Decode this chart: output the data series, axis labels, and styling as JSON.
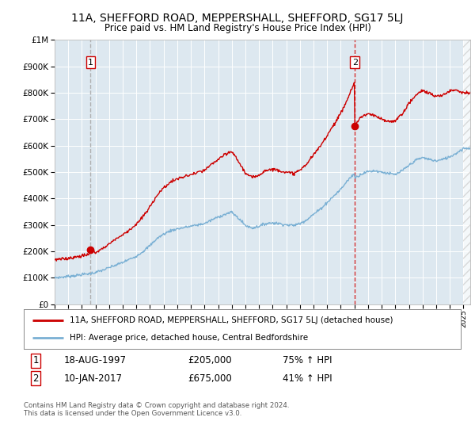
{
  "title": "11A, SHEFFORD ROAD, MEPPERSHALL, SHEFFORD, SG17 5LJ",
  "subtitle": "Price paid vs. HM Land Registry's House Price Index (HPI)",
  "sale1_date": 1997.63,
  "sale1_price": 205000,
  "sale2_date": 2017.03,
  "sale2_price": 675000,
  "legend_line1": "11A, SHEFFORD ROAD, MEPPERSHALL, SHEFFORD, SG17 5LJ (detached house)",
  "legend_line2": "HPI: Average price, detached house, Central Bedfordshire",
  "sale1_text": "18-AUG-1997",
  "sale1_price_text": "£205,000",
  "sale1_hpi_text": "75% ↑ HPI",
  "sale2_text": "10-JAN-2017",
  "sale2_price_text": "£675,000",
  "sale2_hpi_text": "41% ↑ HPI",
  "footer": "Contains HM Land Registry data © Crown copyright and database right 2024.\nThis data is licensed under the Open Government Licence v3.0.",
  "red_color": "#cc0000",
  "blue_color": "#7ab0d4",
  "bg_color": "#dde8f0",
  "ylim": [
    0,
    1000000
  ],
  "xlim_start": 1995.0,
  "xlim_end": 2025.5,
  "hpi_x": [
    1995.0,
    1995.5,
    1996.0,
    1996.5,
    1997.0,
    1997.5,
    1997.63,
    1998.0,
    1998.5,
    1999.0,
    1999.5,
    2000.0,
    2000.5,
    2001.0,
    2001.5,
    2002.0,
    2002.5,
    2003.0,
    2003.5,
    2004.0,
    2004.5,
    2005.0,
    2005.5,
    2006.0,
    2006.5,
    2007.0,
    2007.5,
    2008.0,
    2008.5,
    2009.0,
    2009.5,
    2010.0,
    2010.5,
    2011.0,
    2011.5,
    2012.0,
    2012.5,
    2013.0,
    2013.5,
    2014.0,
    2014.5,
    2015.0,
    2015.5,
    2016.0,
    2016.5,
    2017.0,
    2017.03,
    2017.5,
    2018.0,
    2018.5,
    2019.0,
    2019.5,
    2020.0,
    2020.5,
    2021.0,
    2021.5,
    2022.0,
    2022.5,
    2023.0,
    2023.5,
    2024.0,
    2024.5,
    2025.0
  ],
  "hpi_y": [
    100000,
    102000,
    105000,
    108000,
    112000,
    115000,
    116000,
    120000,
    128000,
    138000,
    148000,
    158000,
    170000,
    182000,
    200000,
    222000,
    248000,
    265000,
    278000,
    285000,
    290000,
    295000,
    300000,
    305000,
    318000,
    330000,
    340000,
    348000,
    325000,
    298000,
    288000,
    295000,
    305000,
    308000,
    305000,
    300000,
    298000,
    305000,
    320000,
    340000,
    360000,
    385000,
    410000,
    435000,
    468000,
    495000,
    478000,
    492000,
    502000,
    505000,
    500000,
    495000,
    490000,
    505000,
    525000,
    545000,
    555000,
    548000,
    542000,
    548000,
    558000,
    572000,
    590000
  ],
  "red_x": [
    1995.0,
    1995.5,
    1996.0,
    1996.5,
    1997.0,
    1997.5,
    1997.63,
    1998.0,
    1998.5,
    1999.0,
    1999.5,
    2000.0,
    2000.5,
    2001.0,
    2001.5,
    2002.0,
    2002.5,
    2003.0,
    2003.5,
    2004.0,
    2004.5,
    2005.0,
    2005.5,
    2006.0,
    2006.5,
    2007.0,
    2007.5,
    2008.0,
    2008.5,
    2009.0,
    2009.5,
    2010.0,
    2010.5,
    2011.0,
    2011.5,
    2012.0,
    2012.5,
    2013.0,
    2013.5,
    2014.0,
    2014.5,
    2015.0,
    2015.5,
    2016.0,
    2016.5,
    2017.0,
    2017.03,
    2017.5,
    2018.0,
    2018.5,
    2019.0,
    2019.5,
    2020.0,
    2020.5,
    2021.0,
    2021.5,
    2022.0,
    2022.5,
    2023.0,
    2023.5,
    2024.0,
    2024.5,
    2025.0
  ],
  "red_y": [
    168000,
    170000,
    174000,
    178000,
    183000,
    188000,
    205000,
    195000,
    210000,
    228000,
    248000,
    262000,
    282000,
    302000,
    332000,
    368000,
    412000,
    440000,
    462000,
    474000,
    482000,
    490000,
    498000,
    506000,
    528000,
    548000,
    565000,
    578000,
    540000,
    496000,
    478000,
    490000,
    507000,
    510000,
    507000,
    498000,
    495000,
    506000,
    531000,
    565000,
    598000,
    640000,
    681000,
    722000,
    777000,
    840000,
    675000,
    710000,
    720000,
    712000,
    700000,
    690000,
    695000,
    720000,
    760000,
    790000,
    810000,
    798000,
    785000,
    792000,
    808000,
    812000,
    800000
  ]
}
